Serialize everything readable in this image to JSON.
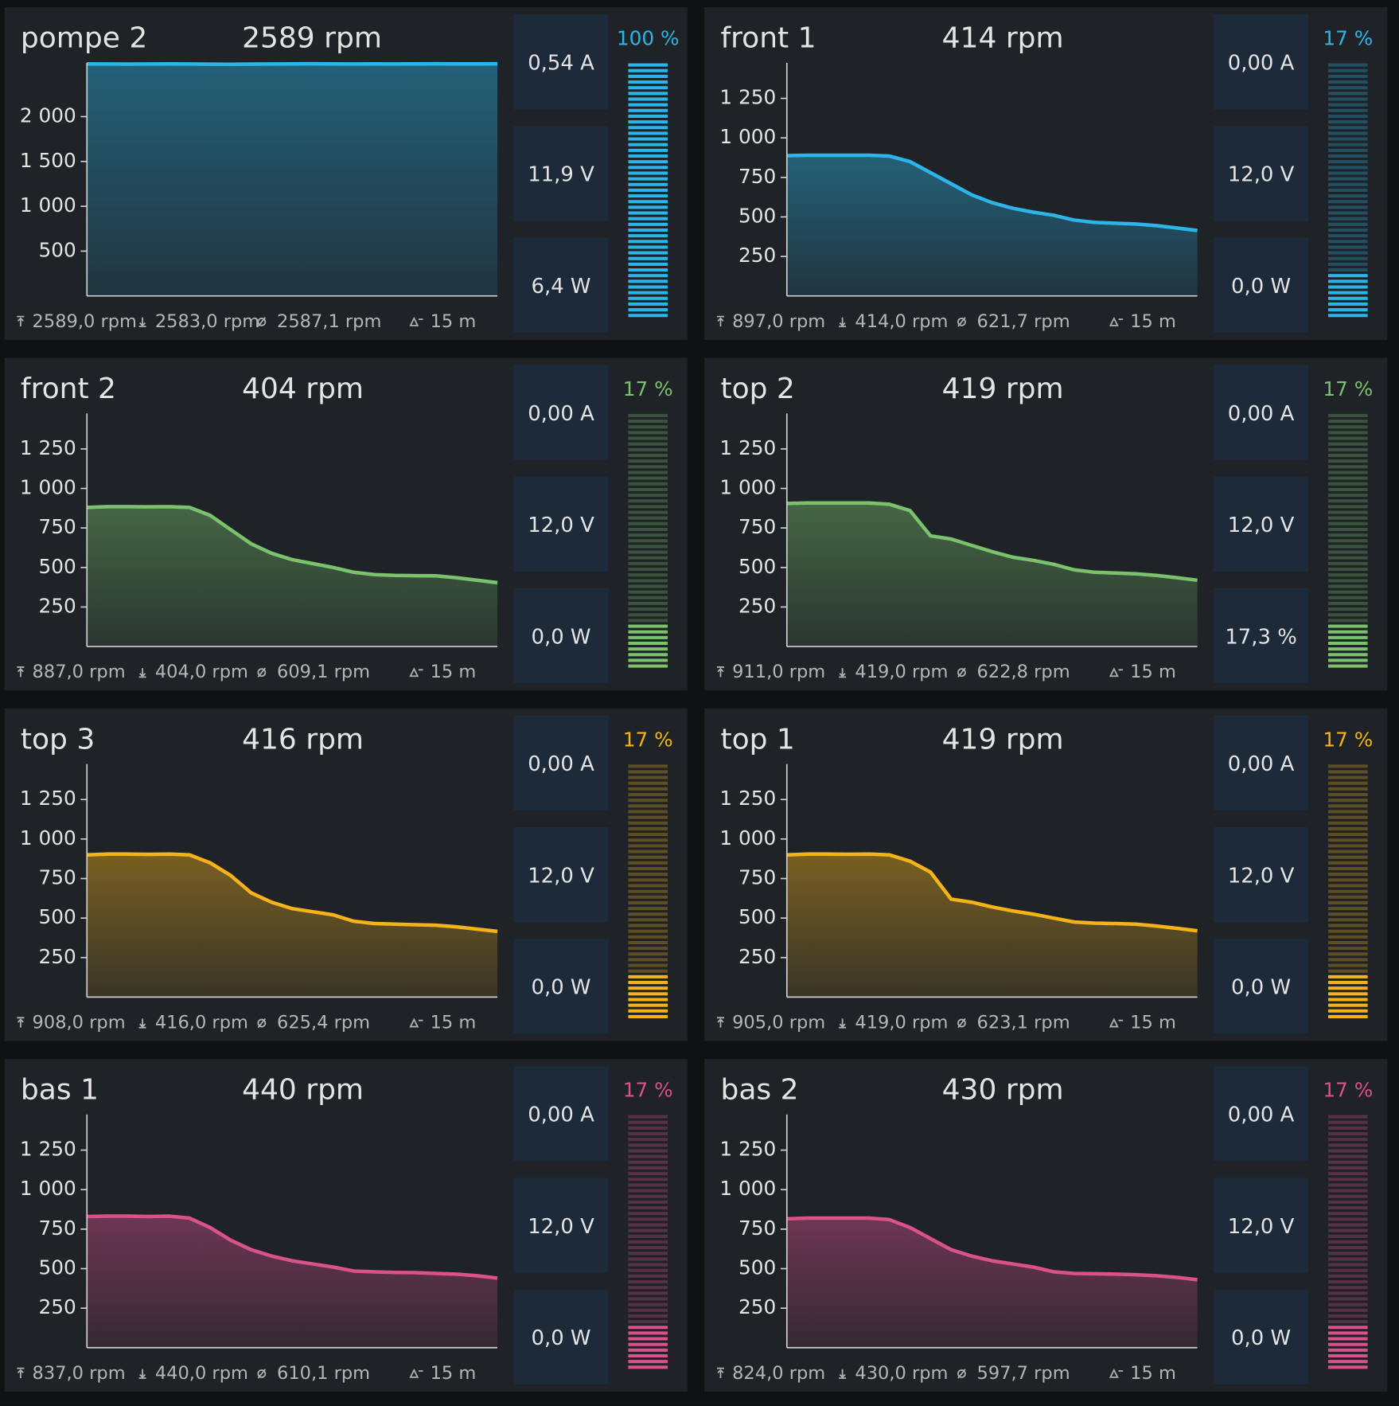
{
  "panels": [
    {
      "name": "pompe 2",
      "rpm": "2589 rpm",
      "color": "#2bb5e8",
      "metrics": [
        "0,54 A",
        "11,9 V",
        "6,4 W"
      ],
      "percent": 100,
      "percent_label": "100 %",
      "stats": {
        "max": "2589,0 rpm",
        "min": "2583,0 rpm",
        "avg": "2587,1 rpm",
        "span": "15 m"
      },
      "chart": {
        "type": "area",
        "values": [
          2588,
          2587,
          2586,
          2587,
          2588,
          2587,
          2585,
          2583,
          2586,
          2587,
          2588,
          2589,
          2588,
          2587,
          2588,
          2587,
          2588,
          2589,
          2588,
          2588,
          2589
        ],
        "ylim": [
          0,
          2600
        ],
        "yticks": [
          500,
          {
            "value": 1000,
            "label": "1 000"
          },
          {
            "value": 1500,
            "label": "1 500"
          },
          {
            "value": 2000,
            "label": "2 000"
          }
        ]
      }
    },
    {
      "name": "front 1",
      "rpm": "414 rpm",
      "color": "#2bb5e8",
      "metrics": [
        "0,00 A",
        "12,0 V",
        "0,0 W"
      ],
      "percent": 17,
      "percent_label": "17 %",
      "stats": {
        "max": "897,0 rpm",
        "min": "414,0 rpm",
        "avg": "621,7 rpm",
        "span": "15 m"
      },
      "chart": {
        "type": "area",
        "values": [
          888,
          890,
          890,
          890,
          890,
          885,
          850,
          780,
          710,
          640,
          590,
          555,
          530,
          510,
          480,
          465,
          460,
          455,
          445,
          430,
          414
        ],
        "ylim": [
          0,
          1475
        ],
        "yticks": [
          250,
          500,
          750,
          {
            "value": 1000,
            "label": "1 000"
          },
          {
            "value": 1250,
            "label": "1 250"
          }
        ]
      }
    },
    {
      "name": "front 2",
      "rpm": "404 rpm",
      "color": "#7ac26c",
      "metrics": [
        "0,00 A",
        "12,0 V",
        "0,0 W"
      ],
      "percent": 17,
      "percent_label": "17 %",
      "stats": {
        "max": "887,0 rpm",
        "min": "404,0 rpm",
        "avg": "609,1 rpm",
        "span": "15 m"
      },
      "chart": {
        "type": "area",
        "values": [
          880,
          885,
          885,
          884,
          885,
          880,
          830,
          740,
          650,
          590,
          550,
          525,
          500,
          470,
          455,
          450,
          448,
          447,
          435,
          420,
          404
        ],
        "ylim": [
          0,
          1475
        ],
        "yticks": [
          250,
          500,
          750,
          {
            "value": 1000,
            "label": "1 000"
          },
          {
            "value": 1250,
            "label": "1 250"
          }
        ]
      }
    },
    {
      "name": "top 2",
      "rpm": "419 rpm",
      "color": "#7ac26c",
      "metrics": [
        "0,00 A",
        "12,0 V",
        "17,3 %"
      ],
      "percent": 17,
      "percent_label": "17 %",
      "stats": {
        "max": "911,0 rpm",
        "min": "419,0 rpm",
        "avg": "622,8 rpm",
        "span": "15 m"
      },
      "chart": {
        "type": "area",
        "values": [
          905,
          908,
          908,
          908,
          908,
          900,
          860,
          700,
          680,
          640,
          600,
          565,
          545,
          520,
          485,
          470,
          465,
          460,
          450,
          435,
          419
        ],
        "ylim": [
          0,
          1475
        ],
        "yticks": [
          250,
          500,
          750,
          {
            "value": 1000,
            "label": "1 000"
          },
          {
            "value": 1250,
            "label": "1 250"
          }
        ]
      }
    },
    {
      "name": "top 3",
      "rpm": "416 rpm",
      "color": "#f5b31a",
      "metrics": [
        "0,00 A",
        "12,0 V",
        "0,0 W"
      ],
      "percent": 17,
      "percent_label": "17 %",
      "stats": {
        "max": "908,0 rpm",
        "min": "416,0 rpm",
        "avg": "625,4 rpm",
        "span": "15 m"
      },
      "chart": {
        "type": "area",
        "values": [
          900,
          905,
          905,
          903,
          905,
          900,
          850,
          770,
          660,
          600,
          560,
          540,
          520,
          480,
          465,
          462,
          458,
          455,
          445,
          430,
          416
        ],
        "ylim": [
          0,
          1475
        ],
        "yticks": [
          250,
          500,
          750,
          {
            "value": 1000,
            "label": "1 000"
          },
          {
            "value": 1250,
            "label": "1 250"
          }
        ]
      }
    },
    {
      "name": "top 1",
      "rpm": "419 rpm",
      "color": "#f5b31a",
      "metrics": [
        "0,00 A",
        "12,0 V",
        "0,0 W"
      ],
      "percent": 17,
      "percent_label": "17 %",
      "stats": {
        "max": "905,0 rpm",
        "min": "419,0 rpm",
        "avg": "623,1 rpm",
        "span": "15 m"
      },
      "chart": {
        "type": "area",
        "values": [
          900,
          905,
          905,
          904,
          905,
          900,
          860,
          790,
          620,
          600,
          570,
          545,
          525,
          500,
          475,
          468,
          465,
          462,
          450,
          435,
          419
        ],
        "ylim": [
          0,
          1475
        ],
        "yticks": [
          250,
          500,
          750,
          {
            "value": 1000,
            "label": "1 000"
          },
          {
            "value": 1250,
            "label": "1 250"
          }
        ]
      }
    },
    {
      "name": "bas 1",
      "rpm": "440 rpm",
      "color": "#d9528a",
      "metrics": [
        "0,00 A",
        "12,0 V",
        "0,0 W"
      ],
      "percent": 17,
      "percent_label": "17 %",
      "stats": {
        "max": "837,0 rpm",
        "min": "440,0 rpm",
        "avg": "610,1 rpm",
        "span": "15 m"
      },
      "chart": {
        "type": "area",
        "values": [
          830,
          832,
          832,
          830,
          832,
          820,
          760,
          680,
          620,
          580,
          550,
          530,
          510,
          485,
          480,
          476,
          475,
          470,
          465,
          455,
          440
        ],
        "ylim": [
          0,
          1475
        ],
        "yticks": [
          250,
          500,
          750,
          {
            "value": 1000,
            "label": "1 000"
          },
          {
            "value": 1250,
            "label": "1 250"
          }
        ]
      }
    },
    {
      "name": "bas 2",
      "rpm": "430 rpm",
      "color": "#d9528a",
      "metrics": [
        "0,00 A",
        "12,0 V",
        "0,0 W"
      ],
      "percent": 17,
      "percent_label": "17 %",
      "stats": {
        "max": "824,0 rpm",
        "min": "430,0 rpm",
        "avg": "597,7 rpm",
        "span": "15 m"
      },
      "chart": {
        "type": "area",
        "values": [
          815,
          820,
          820,
          820,
          820,
          810,
          760,
          690,
          620,
          580,
          550,
          530,
          510,
          480,
          470,
          468,
          465,
          462,
          455,
          445,
          430
        ],
        "ylim": [
          0,
          1475
        ],
        "yticks": [
          250,
          500,
          750,
          {
            "value": 1000,
            "label": "1 000"
          },
          {
            "value": 1250,
            "label": "1 250"
          }
        ]
      }
    }
  ]
}
